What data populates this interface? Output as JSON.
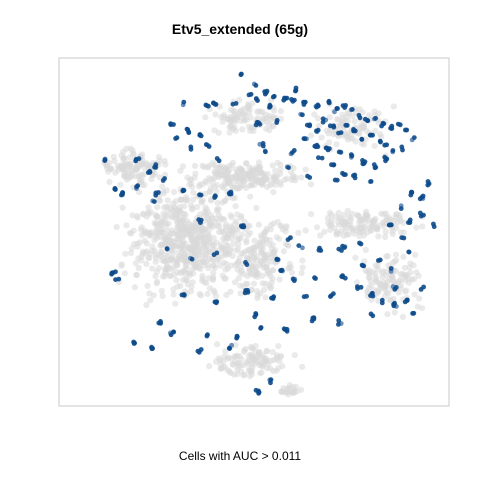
{
  "chart_data": {
    "type": "scatter",
    "title": "Etv5_extended (65g)",
    "xlabel": "Cells with AUC > 0.011",
    "ylabel": "",
    "grid": false,
    "legend": "none",
    "colors": {
      "background_cells": "#d8d8d8",
      "highlight_cells": "#0d4a8a",
      "highlight_light": "#5a84b4",
      "frame": "#c8c8c8"
    },
    "background_regions": [
      {
        "cx": 0.33,
        "cy": 0.52,
        "rx": 0.21,
        "ry": 0.22,
        "n": 620
      },
      {
        "cx": 0.19,
        "cy": 0.32,
        "rx": 0.1,
        "ry": 0.07,
        "n": 110
      },
      {
        "cx": 0.48,
        "cy": 0.34,
        "rx": 0.2,
        "ry": 0.06,
        "n": 200
      },
      {
        "cx": 0.52,
        "cy": 0.57,
        "rx": 0.13,
        "ry": 0.15,
        "n": 170
      },
      {
        "cx": 0.78,
        "cy": 0.48,
        "rx": 0.18,
        "ry": 0.06,
        "n": 130
      },
      {
        "cx": 0.84,
        "cy": 0.64,
        "rx": 0.11,
        "ry": 0.12,
        "n": 120
      },
      {
        "cx": 0.5,
        "cy": 0.87,
        "rx": 0.15,
        "ry": 0.06,
        "n": 110
      },
      {
        "cx": 0.6,
        "cy": 0.95,
        "rx": 0.04,
        "ry": 0.03,
        "n": 20
      },
      {
        "cx": 0.48,
        "cy": 0.17,
        "rx": 0.13,
        "ry": 0.07,
        "n": 90
      },
      {
        "cx": 0.75,
        "cy": 0.2,
        "rx": 0.14,
        "ry": 0.1,
        "n": 90
      }
    ],
    "highlight_points": [
      [
        0.47,
        0.05
      ],
      [
        0.5,
        0.08
      ],
      [
        0.53,
        0.1
      ],
      [
        0.55,
        0.11
      ],
      [
        0.49,
        0.11
      ],
      [
        0.32,
        0.13
      ],
      [
        0.38,
        0.14
      ],
      [
        0.4,
        0.13
      ],
      [
        0.45,
        0.13
      ],
      [
        0.51,
        0.12
      ],
      [
        0.6,
        0.12
      ],
      [
        0.63,
        0.13
      ],
      [
        0.66,
        0.14
      ],
      [
        0.69,
        0.13
      ],
      [
        0.71,
        0.15
      ],
      [
        0.73,
        0.14
      ],
      [
        0.75,
        0.15
      ],
      [
        0.77,
        0.17
      ],
      [
        0.79,
        0.18
      ],
      [
        0.81,
        0.17
      ],
      [
        0.83,
        0.19
      ],
      [
        0.85,
        0.2
      ],
      [
        0.87,
        0.19
      ],
      [
        0.89,
        0.21
      ],
      [
        0.91,
        0.23
      ],
      [
        0.62,
        0.16
      ],
      [
        0.64,
        0.19
      ],
      [
        0.66,
        0.21
      ],
      [
        0.68,
        0.18
      ],
      [
        0.7,
        0.2
      ],
      [
        0.72,
        0.22
      ],
      [
        0.74,
        0.19
      ],
      [
        0.76,
        0.21
      ],
      [
        0.78,
        0.23
      ],
      [
        0.8,
        0.22
      ],
      [
        0.82,
        0.24
      ],
      [
        0.84,
        0.25
      ],
      [
        0.86,
        0.27
      ],
      [
        0.88,
        0.26
      ],
      [
        0.66,
        0.25
      ],
      [
        0.69,
        0.26
      ],
      [
        0.72,
        0.27
      ],
      [
        0.75,
        0.28
      ],
      [
        0.78,
        0.3
      ],
      [
        0.81,
        0.31
      ],
      [
        0.84,
        0.29
      ],
      [
        0.7,
        0.31
      ],
      [
        0.73,
        0.33
      ],
      [
        0.76,
        0.34
      ],
      [
        0.8,
        0.35
      ],
      [
        0.67,
        0.29
      ],
      [
        0.63,
        0.23
      ],
      [
        0.6,
        0.27
      ],
      [
        0.29,
        0.19
      ],
      [
        0.33,
        0.21
      ],
      [
        0.36,
        0.22
      ],
      [
        0.38,
        0.25
      ],
      [
        0.51,
        0.19
      ],
      [
        0.52,
        0.25
      ],
      [
        0.53,
        0.27
      ],
      [
        0.59,
        0.31
      ],
      [
        0.2,
        0.29
      ],
      [
        0.23,
        0.33
      ],
      [
        0.25,
        0.31
      ],
      [
        0.27,
        0.35
      ],
      [
        0.12,
        0.29
      ],
      [
        0.14,
        0.38
      ],
      [
        0.16,
        0.39
      ],
      [
        0.25,
        0.39
      ],
      [
        0.32,
        0.38
      ],
      [
        0.36,
        0.39
      ],
      [
        0.4,
        0.4
      ],
      [
        0.44,
        0.39
      ],
      [
        0.36,
        0.47
      ],
      [
        0.47,
        0.48
      ],
      [
        0.59,
        0.52
      ],
      [
        0.67,
        0.55
      ],
      [
        0.72,
        0.55
      ],
      [
        0.77,
        0.53
      ],
      [
        0.85,
        0.48
      ],
      [
        0.88,
        0.43
      ],
      [
        0.9,
        0.47
      ],
      [
        0.93,
        0.45
      ],
      [
        0.96,
        0.48
      ],
      [
        0.88,
        0.52
      ],
      [
        0.9,
        0.56
      ],
      [
        0.82,
        0.58
      ],
      [
        0.85,
        0.61
      ],
      [
        0.78,
        0.6
      ],
      [
        0.66,
        0.63
      ],
      [
        0.57,
        0.61
      ],
      [
        0.48,
        0.59
      ],
      [
        0.4,
        0.56
      ],
      [
        0.34,
        0.58
      ],
      [
        0.28,
        0.55
      ],
      [
        0.14,
        0.62
      ],
      [
        0.15,
        0.64
      ],
      [
        0.32,
        0.68
      ],
      [
        0.4,
        0.7
      ],
      [
        0.48,
        0.67
      ],
      [
        0.55,
        0.69
      ],
      [
        0.63,
        0.69
      ],
      [
        0.7,
        0.68
      ],
      [
        0.73,
        0.63
      ],
      [
        0.77,
        0.66
      ],
      [
        0.8,
        0.68
      ],
      [
        0.83,
        0.7
      ],
      [
        0.86,
        0.71
      ],
      [
        0.89,
        0.7
      ],
      [
        0.91,
        0.73
      ],
      [
        0.86,
        0.66
      ],
      [
        0.93,
        0.66
      ],
      [
        0.8,
        0.74
      ],
      [
        0.72,
        0.76
      ],
      [
        0.65,
        0.75
      ],
      [
        0.58,
        0.78
      ],
      [
        0.52,
        0.78
      ],
      [
        0.46,
        0.8
      ],
      [
        0.38,
        0.8
      ],
      [
        0.29,
        0.79
      ],
      [
        0.24,
        0.83
      ],
      [
        0.19,
        0.82
      ],
      [
        0.26,
        0.76
      ],
      [
        0.36,
        0.84
      ],
      [
        0.44,
        0.83
      ],
      [
        0.5,
        0.74
      ],
      [
        0.73,
        0.54
      ],
      [
        0.62,
        0.54
      ],
      [
        0.56,
        0.58
      ],
      [
        0.6,
        0.64
      ],
      [
        0.54,
        0.93
      ],
      [
        0.51,
        0.96
      ],
      [
        0.3,
        0.23
      ],
      [
        0.34,
        0.26
      ],
      [
        0.41,
        0.29
      ],
      [
        0.93,
        0.4
      ],
      [
        0.95,
        0.36
      ],
      [
        0.9,
        0.39
      ],
      [
        0.71,
        0.35
      ],
      [
        0.64,
        0.34
      ],
      [
        0.58,
        0.12
      ],
      [
        0.61,
        0.09
      ],
      [
        0.56,
        0.18
      ],
      [
        0.54,
        0.14
      ],
      [
        0.2,
        0.37
      ],
      [
        0.24,
        0.41
      ]
    ]
  }
}
